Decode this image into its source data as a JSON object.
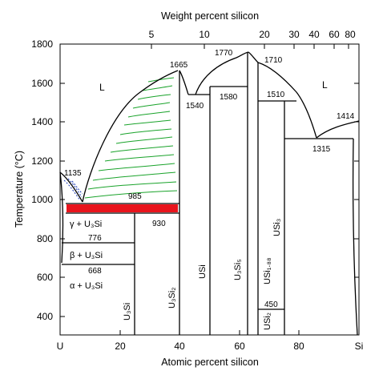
{
  "figure": {
    "top_axis_title": "Weight percent silicon",
    "bottom_axis_title": "Atomic percent silicon",
    "left_axis_title": "Temperature (°C)",
    "top_ticks": [
      "5",
      "10",
      "20",
      "30",
      "40",
      "60",
      "80"
    ],
    "bottom_ticks": [
      "U",
      "20",
      "40",
      "60",
      "80",
      "Si"
    ],
    "left_ticks": [
      "400",
      "600",
      "800",
      "1000",
      "1200",
      "1400",
      "1600",
      "1800"
    ],
    "temperatures": {
      "t1135": "1135",
      "t985": "985",
      "t930": "930",
      "t1665": "1665",
      "t1770": "1770",
      "t1710": "1710",
      "t1540": "1540",
      "t1580": "1580",
      "t1510": "1510",
      "t1414": "1414",
      "t1315": "1315",
      "t776": "776",
      "t668": "668",
      "t450": "450"
    },
    "phase_labels": {
      "liquid_left": "L",
      "liquid_right": "L",
      "gamma_u3si": "γ + U₃Si",
      "beta_u3si": "β + U₃Si",
      "alpha_u3si": "α + U₃Si",
      "u3si": "U₃Si",
      "u3si2": "U₃Si₂",
      "usi": "USi",
      "u3si5": "U₃Si₅",
      "usi188": "USi₁.₈₈",
      "usi2": "USi₂",
      "usi3": "USi₃"
    },
    "colors": {
      "line": "#000000",
      "highlight_bar": "#e8141c",
      "green_curves": "#1aa32b",
      "blue_dashes": "#1f3fb8"
    }
  }
}
